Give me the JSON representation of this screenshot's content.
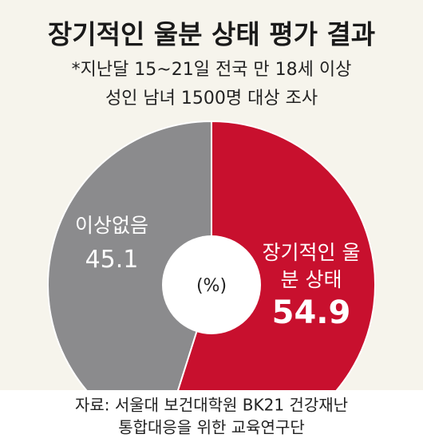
{
  "chart_data": {
    "type": "donut",
    "title": "장기적인 울분 상태 평가 결과",
    "subtitle": [
      "*지난달 15~21일 전국 만 18세 이상",
      "성인 남녀 1500명 대상 조사"
    ],
    "unit": "(%)",
    "categories": [
      "장기적인 울분 상태",
      "이상없음"
    ],
    "values": [
      54.9,
      45.1
    ],
    "colors": [
      "#c8102e",
      "#8b8b8d"
    ],
    "source": [
      "자료: 서울대 보건대학원 BK21 건강재난",
      "통합대응을 위한 교육연구단"
    ]
  }
}
